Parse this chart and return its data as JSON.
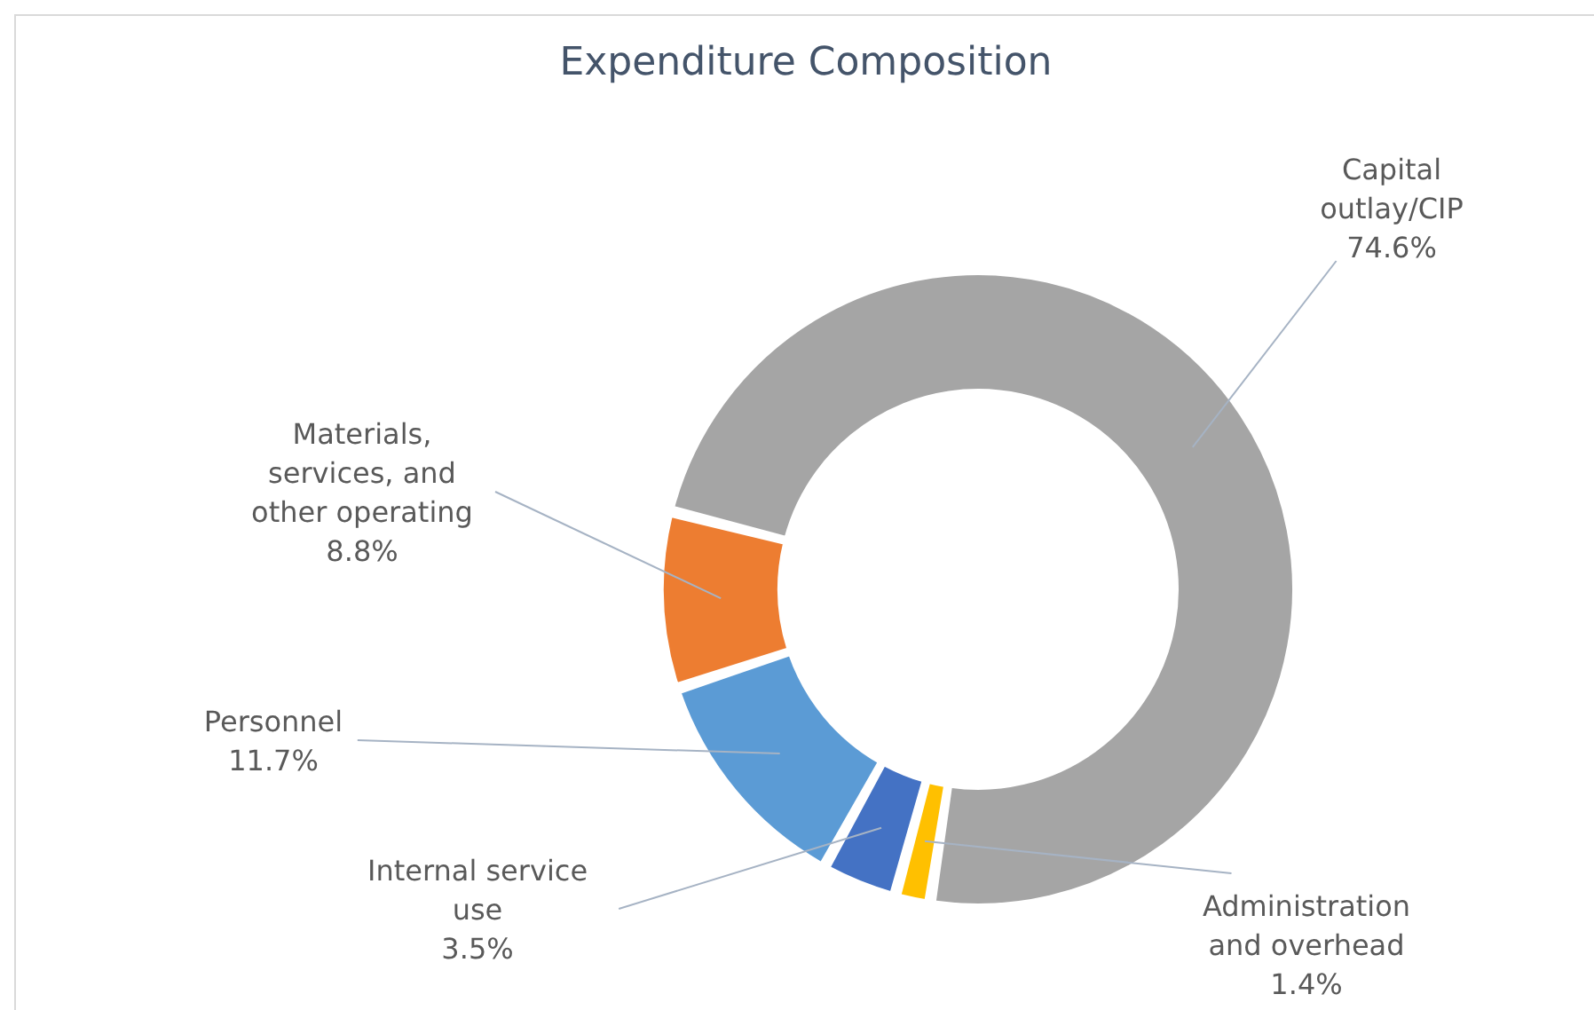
{
  "chart_data": {
    "type": "donut",
    "title": "Expenditure Composition",
    "categories": [
      "Capital outlay/CIP",
      "Administration and overhead",
      "Internal service use",
      "Personnel",
      "Materials, services, and other operating"
    ],
    "values": [
      74.6,
      1.4,
      3.5,
      11.7,
      8.8
    ],
    "value_labels": [
      "74.6%",
      "1.4%",
      "3.5%",
      "11.7%",
      "8.8%"
    ],
    "colors": [
      "#a5a5a5",
      "#ffc000",
      "#4472c4",
      "#5b9bd5",
      "#ed7d31"
    ],
    "legend": false
  }
}
